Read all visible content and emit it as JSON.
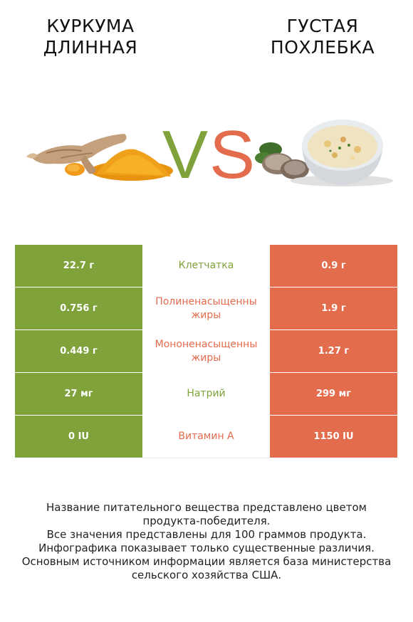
{
  "left_food": {
    "name": "КУРКУМА ДЛИННАЯ",
    "color": "#7fa23a"
  },
  "right_food": {
    "name": "ГУСТАЯ ПОХЛЕБКА",
    "color": "#e36c4d"
  },
  "vs": {
    "v": "V",
    "s": "S"
  },
  "rows": [
    {
      "nutrient": "Клетчатка",
      "left": "22.7 г",
      "right": "0.9 г",
      "winner": "left"
    },
    {
      "nutrient": "Полиненасыщенные жиры",
      "left": "0.756 г",
      "right": "1.9 г",
      "winner": "right"
    },
    {
      "nutrient": "Мононенасыщенные жиры",
      "left": "0.449 г",
      "right": "1.27 г",
      "winner": "right"
    },
    {
      "nutrient": "Натрий",
      "left": "27 мг",
      "right": "299 мг",
      "winner": "left"
    },
    {
      "nutrient": "Витамин A",
      "left": "0 IU",
      "right": "1150 IU",
      "winner": "right"
    }
  ],
  "notes": [
    "Название питательного вещества представлено цветом",
    "продукта-победителя.",
    "Все значения представлены для 100 граммов продукта.",
    "Инфографика показывает только существенные различия.",
    "Основным источником информации является база министерства",
    "сельского хозяйства США."
  ]
}
